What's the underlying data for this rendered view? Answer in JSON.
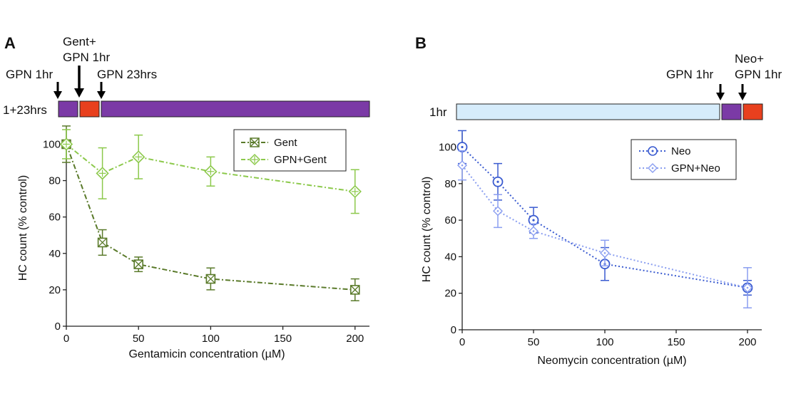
{
  "colors": {
    "gent": "#5a7a2a",
    "gpn_gent": "#8cc94b",
    "neo": "#3a5bd0",
    "gpn_neo": "#8a9ef0",
    "purple": "#7b3aa6",
    "red": "#e8401e",
    "lightblue": "#d6ecfb"
  },
  "panel_a": {
    "label": "A",
    "protocol": {
      "row_label": "1+23hrs",
      "annotations": [
        {
          "text": "GPN 1hr",
          "lines": [
            "GPN 1hr"
          ],
          "arrow": "down-arrow-icon"
        },
        {
          "text": "Gent+ GPN 1hr",
          "lines": [
            "Gent+",
            "GPN 1hr"
          ],
          "arrow": "down-arrow-icon"
        },
        {
          "text": "GPN 23hrs",
          "lines": [
            "GPN 23hrs"
          ],
          "arrow": "down-arrow-icon"
        }
      ],
      "segments": [
        "purple",
        "red",
        "purple"
      ]
    }
  },
  "panel_b": {
    "label": "B",
    "protocol": {
      "row_label": "1hr",
      "annotations": [
        {
          "text": "GPN 1hr",
          "lines": [
            "GPN 1hr"
          ],
          "arrow": "down-arrow-icon"
        },
        {
          "text": "Neo+ GPN 1hr",
          "lines": [
            "Neo+",
            "GPN 1hr"
          ],
          "arrow": "down-arrow-icon"
        }
      ],
      "segments": [
        "lightblue",
        "purple",
        "red"
      ]
    }
  },
  "chart_data": [
    {
      "type": "line",
      "panel": "A",
      "title": "",
      "xlabel": "Gentamicin concentration (µM)",
      "ylabel": "HC count (% control)",
      "xlim": [
        0,
        210
      ],
      "ylim": [
        0,
        108
      ],
      "xticks": [
        0,
        50,
        100,
        150,
        200
      ],
      "yticks": [
        0,
        20,
        40,
        60,
        80,
        100
      ],
      "legend_position": "top-right",
      "series": [
        {
          "name": "Gent",
          "marker": "crossed-square",
          "line_style": "dash-dot",
          "color_key": "gent",
          "x": [
            0,
            25,
            50,
            100,
            200
          ],
          "y": [
            100,
            46,
            34,
            26,
            20
          ],
          "err": [
            10,
            7,
            4,
            6,
            6
          ]
        },
        {
          "name": "GPN+Gent",
          "marker": "diamond-plus",
          "line_style": "dash-dot",
          "color_key": "gpn_gent",
          "x": [
            0,
            25,
            50,
            100,
            200
          ],
          "y": [
            100,
            84,
            93,
            85,
            74
          ],
          "err": [
            8,
            14,
            12,
            8,
            12
          ]
        }
      ]
    },
    {
      "type": "line",
      "panel": "B",
      "title": "",
      "xlabel": "Neomycin concentration (µM)",
      "ylabel": "HC count (% control)",
      "xlim": [
        0,
        210
      ],
      "ylim": [
        0,
        108
      ],
      "xticks": [
        0,
        50,
        100,
        150,
        200
      ],
      "yticks": [
        0,
        20,
        40,
        60,
        80,
        100
      ],
      "legend_position": "top-right",
      "series": [
        {
          "name": "Neo",
          "marker": "circle-dot",
          "line_style": "dotted",
          "color_key": "neo",
          "x": [
            0,
            25,
            50,
            100,
            200
          ],
          "y": [
            100,
            81,
            60,
            36,
            23
          ],
          "err": [
            9,
            10,
            7,
            9,
            4
          ]
        },
        {
          "name": "GPN+Neo",
          "marker": "diamond-dot",
          "line_style": "dotted",
          "color_key": "gpn_neo",
          "x": [
            0,
            25,
            50,
            100,
            200
          ],
          "y": [
            90,
            65,
            54,
            42,
            23
          ],
          "err": [
            8,
            9,
            4,
            7,
            11
          ]
        }
      ]
    }
  ]
}
